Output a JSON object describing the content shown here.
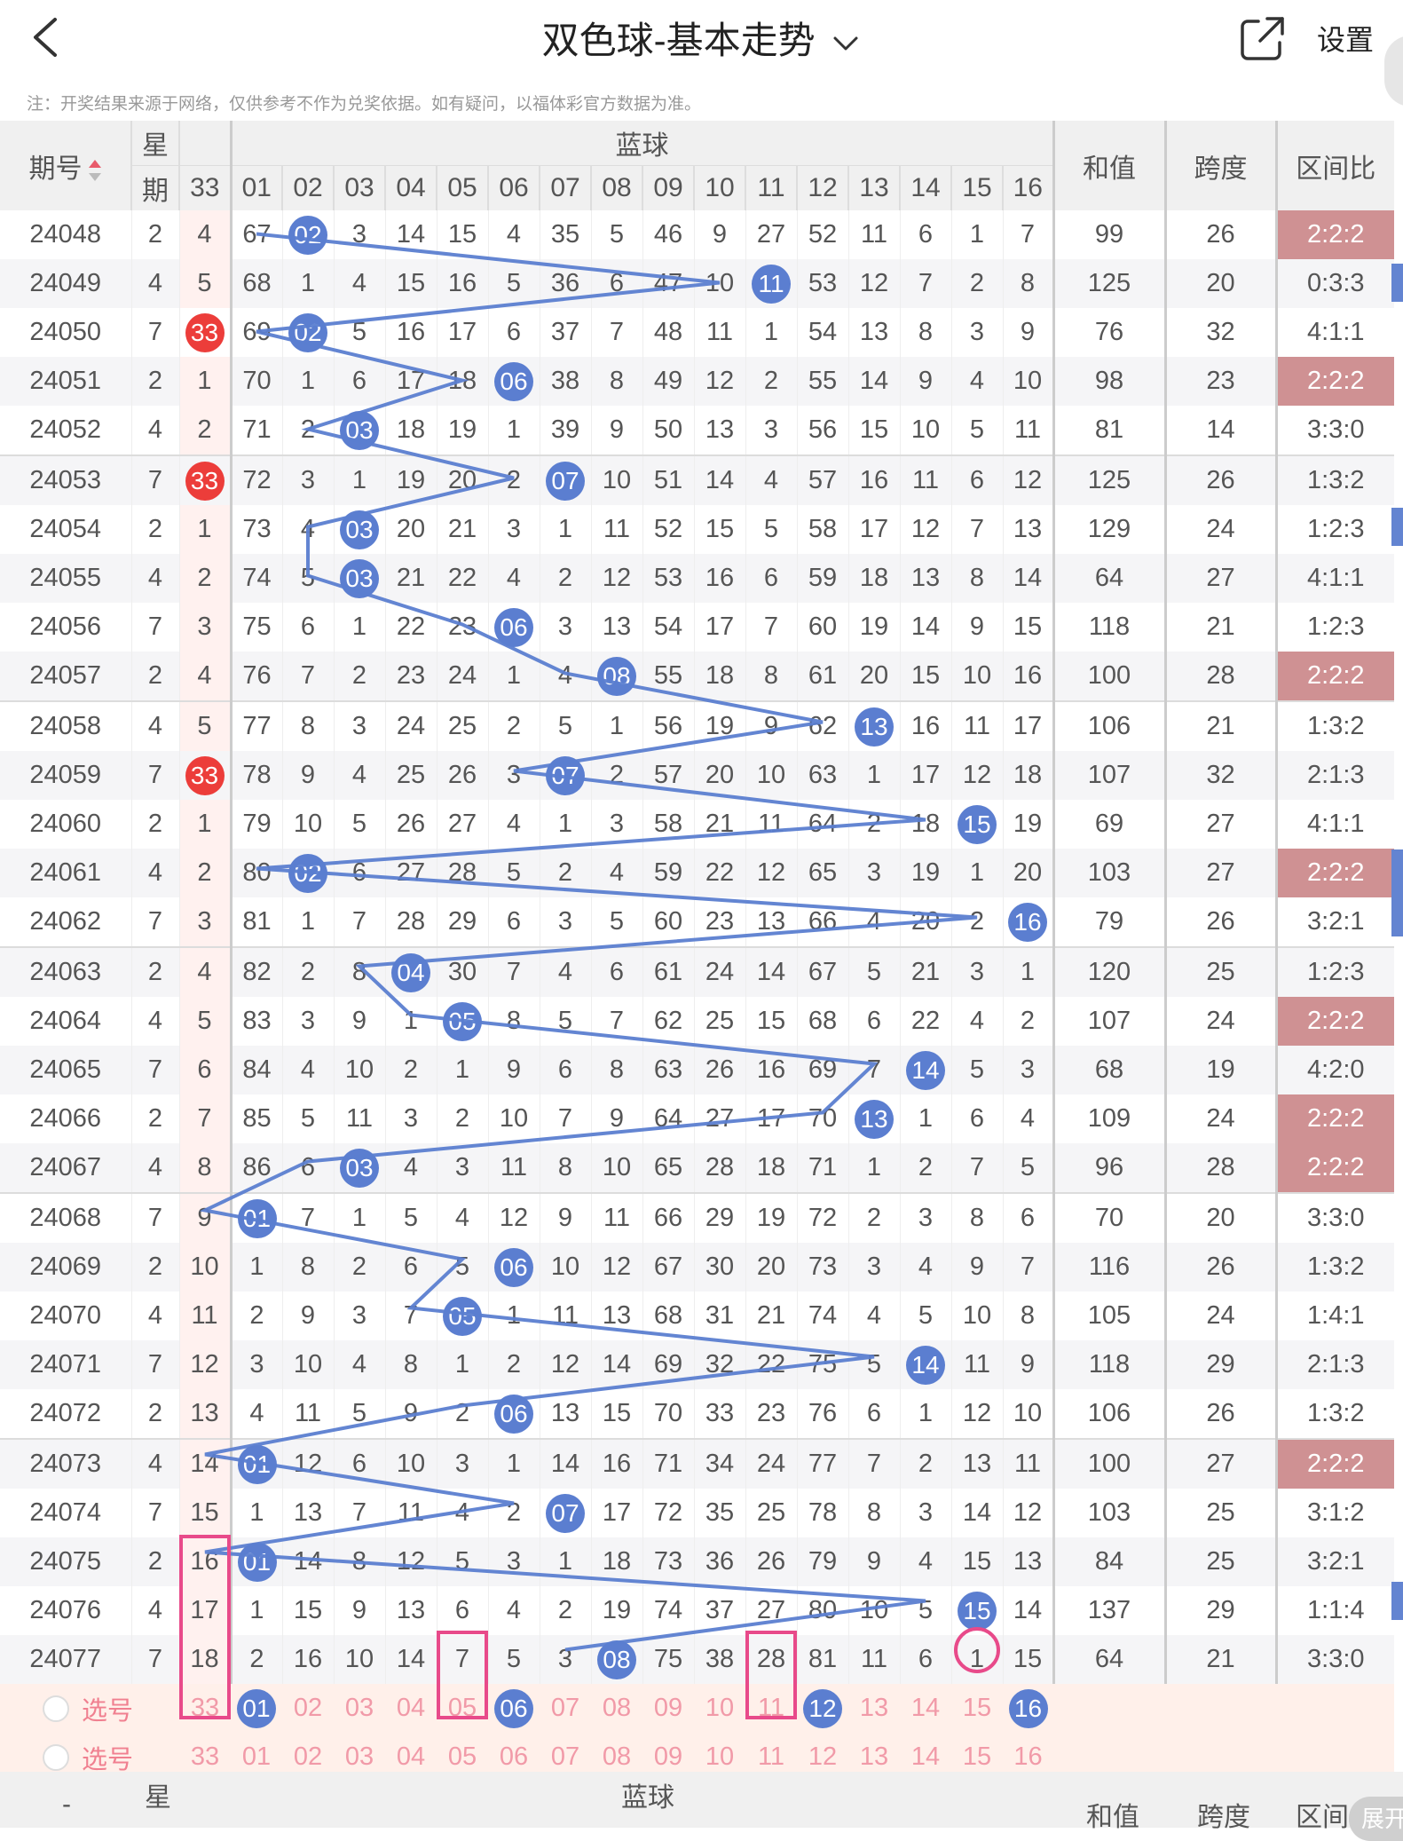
{
  "header": {
    "title": "双色球-基本走势",
    "settings_label": "设置"
  },
  "notice": "注：开奖结果来源于网络，仅供参考不作为兑奖依据。如有疑问，以福体彩官方数据为准。",
  "columns": {
    "issue_label": "期号",
    "week_label_1": "星",
    "week_label_2": "期",
    "blue_label": "蓝球",
    "red33_label": "33",
    "blue_numbers": [
      "01",
      "02",
      "03",
      "04",
      "05",
      "06",
      "07",
      "08",
      "09",
      "10",
      "11",
      "12",
      "13",
      "14",
      "15",
      "16"
    ],
    "sum_label": "和值",
    "span_label": "跨度",
    "ratio_label": "区间比"
  },
  "rows": [
    {
      "issue": "24048",
      "week": "2",
      "red33": "4",
      "red33_hit": false,
      "blue": [
        67,
        "02",
        3,
        14,
        15,
        4,
        35,
        5,
        46,
        9,
        27,
        52,
        11,
        6,
        1,
        7
      ],
      "blue_hit": 2,
      "sum": "99",
      "span": "26",
      "ratio": "2:2:2",
      "ratio_hl": true
    },
    {
      "issue": "24049",
      "week": "4",
      "red33": "5",
      "red33_hit": false,
      "blue": [
        68,
        1,
        4,
        15,
        16,
        5,
        36,
        6,
        47,
        10,
        "11",
        53,
        12,
        7,
        2,
        8
      ],
      "blue_hit": 11,
      "sum": "125",
      "span": "20",
      "ratio": "0:3:3",
      "ratio_hl": false
    },
    {
      "issue": "24050",
      "week": "7",
      "red33": "33",
      "red33_hit": true,
      "blue": [
        69,
        "02",
        5,
        16,
        17,
        6,
        37,
        7,
        48,
        11,
        1,
        54,
        13,
        8,
        3,
        9
      ],
      "blue_hit": 2,
      "sum": "76",
      "span": "32",
      "ratio": "4:1:1",
      "ratio_hl": false
    },
    {
      "issue": "24051",
      "week": "2",
      "red33": "1",
      "red33_hit": false,
      "blue": [
        70,
        1,
        6,
        17,
        18,
        "06",
        38,
        8,
        49,
        12,
        2,
        55,
        14,
        9,
        4,
        10
      ],
      "blue_hit": 6,
      "sum": "98",
      "span": "23",
      "ratio": "2:2:2",
      "ratio_hl": true
    },
    {
      "issue": "24052",
      "week": "4",
      "red33": "2",
      "red33_hit": false,
      "blue": [
        71,
        2,
        "03",
        18,
        19,
        1,
        39,
        9,
        50,
        13,
        3,
        56,
        15,
        10,
        5,
        11
      ],
      "blue_hit": 3,
      "sum": "81",
      "span": "14",
      "ratio": "3:3:0",
      "ratio_hl": false
    },
    {
      "issue": "24053",
      "week": "7",
      "red33": "33",
      "red33_hit": true,
      "blue": [
        72,
        3,
        1,
        19,
        20,
        2,
        "07",
        10,
        51,
        14,
        4,
        57,
        16,
        11,
        6,
        12
      ],
      "blue_hit": 7,
      "sum": "125",
      "span": "26",
      "ratio": "1:3:2",
      "ratio_hl": false
    },
    {
      "issue": "24054",
      "week": "2",
      "red33": "1",
      "red33_hit": false,
      "blue": [
        73,
        4,
        "03",
        20,
        21,
        3,
        1,
        11,
        52,
        15,
        5,
        58,
        17,
        12,
        7,
        13
      ],
      "blue_hit": 3,
      "sum": "129",
      "span": "24",
      "ratio": "1:2:3",
      "ratio_hl": false
    },
    {
      "issue": "24055",
      "week": "4",
      "red33": "2",
      "red33_hit": false,
      "blue": [
        74,
        5,
        "03",
        21,
        22,
        4,
        2,
        12,
        53,
        16,
        6,
        59,
        18,
        13,
        8,
        14
      ],
      "blue_hit": 3,
      "sum": "64",
      "span": "27",
      "ratio": "4:1:1",
      "ratio_hl": false
    },
    {
      "issue": "24056",
      "week": "7",
      "red33": "3",
      "red33_hit": false,
      "blue": [
        75,
        6,
        1,
        22,
        23,
        "06",
        3,
        13,
        54,
        17,
        7,
        60,
        19,
        14,
        9,
        15
      ],
      "blue_hit": 6,
      "sum": "118",
      "span": "21",
      "ratio": "1:2:3",
      "ratio_hl": false
    },
    {
      "issue": "24057",
      "week": "2",
      "red33": "4",
      "red33_hit": false,
      "blue": [
        76,
        7,
        2,
        23,
        24,
        1,
        4,
        "08",
        55,
        18,
        8,
        61,
        20,
        15,
        10,
        16
      ],
      "blue_hit": 8,
      "sum": "100",
      "span": "28",
      "ratio": "2:2:2",
      "ratio_hl": true
    },
    {
      "issue": "24058",
      "week": "4",
      "red33": "5",
      "red33_hit": false,
      "blue": [
        77,
        8,
        3,
        24,
        25,
        2,
        5,
        1,
        56,
        19,
        9,
        62,
        "13",
        16,
        11,
        17
      ],
      "blue_hit": 13,
      "sum": "106",
      "span": "21",
      "ratio": "1:3:2",
      "ratio_hl": false
    },
    {
      "issue": "24059",
      "week": "7",
      "red33": "33",
      "red33_hit": true,
      "blue": [
        78,
        9,
        4,
        25,
        26,
        3,
        "07",
        2,
        57,
        20,
        10,
        63,
        1,
        17,
        12,
        18
      ],
      "blue_hit": 7,
      "sum": "107",
      "span": "32",
      "ratio": "2:1:3",
      "ratio_hl": false
    },
    {
      "issue": "24060",
      "week": "2",
      "red33": "1",
      "red33_hit": false,
      "blue": [
        79,
        10,
        5,
        26,
        27,
        4,
        1,
        3,
        58,
        21,
        11,
        64,
        2,
        18,
        "15",
        19
      ],
      "blue_hit": 15,
      "sum": "69",
      "span": "27",
      "ratio": "4:1:1",
      "ratio_hl": false
    },
    {
      "issue": "24061",
      "week": "4",
      "red33": "2",
      "red33_hit": false,
      "blue": [
        80,
        "02",
        6,
        27,
        28,
        5,
        2,
        4,
        59,
        22,
        12,
        65,
        3,
        19,
        1,
        20
      ],
      "blue_hit": 2,
      "sum": "103",
      "span": "27",
      "ratio": "2:2:2",
      "ratio_hl": true
    },
    {
      "issue": "24062",
      "week": "7",
      "red33": "3",
      "red33_hit": false,
      "blue": [
        81,
        1,
        7,
        28,
        29,
        6,
        3,
        5,
        60,
        23,
        13,
        66,
        4,
        20,
        2,
        "16"
      ],
      "blue_hit": 16,
      "sum": "79",
      "span": "26",
      "ratio": "3:2:1",
      "ratio_hl": false
    },
    {
      "issue": "24063",
      "week": "2",
      "red33": "4",
      "red33_hit": false,
      "blue": [
        82,
        2,
        8,
        "04",
        30,
        7,
        4,
        6,
        61,
        24,
        14,
        67,
        5,
        21,
        3,
        1
      ],
      "blue_hit": 4,
      "sum": "120",
      "span": "25",
      "ratio": "1:2:3",
      "ratio_hl": false
    },
    {
      "issue": "24064",
      "week": "4",
      "red33": "5",
      "red33_hit": false,
      "blue": [
        83,
        3,
        9,
        1,
        "05",
        8,
        5,
        7,
        62,
        25,
        15,
        68,
        6,
        22,
        4,
        2
      ],
      "blue_hit": 5,
      "sum": "107",
      "span": "24",
      "ratio": "2:2:2",
      "ratio_hl": true
    },
    {
      "issue": "24065",
      "week": "7",
      "red33": "6",
      "red33_hit": false,
      "blue": [
        84,
        4,
        10,
        2,
        1,
        9,
        6,
        8,
        63,
        26,
        16,
        69,
        7,
        "14",
        5,
        3
      ],
      "blue_hit": 14,
      "sum": "68",
      "span": "19",
      "ratio": "4:2:0",
      "ratio_hl": false
    },
    {
      "issue": "24066",
      "week": "2",
      "red33": "7",
      "red33_hit": false,
      "blue": [
        85,
        5,
        11,
        3,
        2,
        10,
        7,
        9,
        64,
        27,
        17,
        70,
        "13",
        1,
        6,
        4
      ],
      "blue_hit": 13,
      "sum": "109",
      "span": "24",
      "ratio": "2:2:2",
      "ratio_hl": true
    },
    {
      "issue": "24067",
      "week": "4",
      "red33": "8",
      "red33_hit": false,
      "blue": [
        86,
        6,
        "03",
        4,
        3,
        11,
        8,
        10,
        65,
        28,
        18,
        71,
        1,
        2,
        7,
        5
      ],
      "blue_hit": 3,
      "sum": "96",
      "span": "28",
      "ratio": "2:2:2",
      "ratio_hl": true
    },
    {
      "issue": "24068",
      "week": "7",
      "red33": "9",
      "red33_hit": false,
      "blue": [
        "01",
        7,
        1,
        5,
        4,
        12,
        9,
        11,
        66,
        29,
        19,
        72,
        2,
        3,
        8,
        6
      ],
      "blue_hit": 1,
      "sum": "70",
      "span": "20",
      "ratio": "3:3:0",
      "ratio_hl": false
    },
    {
      "issue": "24069",
      "week": "2",
      "red33": "10",
      "red33_hit": false,
      "blue": [
        1,
        8,
        2,
        6,
        5,
        "06",
        10,
        12,
        67,
        30,
        20,
        73,
        3,
        4,
        9,
        7
      ],
      "blue_hit": 6,
      "sum": "116",
      "span": "26",
      "ratio": "1:3:2",
      "ratio_hl": false
    },
    {
      "issue": "24070",
      "week": "4",
      "red33": "11",
      "red33_hit": false,
      "blue": [
        2,
        9,
        3,
        7,
        "05",
        1,
        11,
        13,
        68,
        31,
        21,
        74,
        4,
        5,
        10,
        8
      ],
      "blue_hit": 5,
      "sum": "105",
      "span": "24",
      "ratio": "1:4:1",
      "ratio_hl": false
    },
    {
      "issue": "24071",
      "week": "7",
      "red33": "12",
      "red33_hit": false,
      "blue": [
        3,
        10,
        4,
        8,
        1,
        2,
        12,
        14,
        69,
        32,
        22,
        75,
        5,
        "14",
        11,
        9
      ],
      "blue_hit": 14,
      "sum": "118",
      "span": "29",
      "ratio": "2:1:3",
      "ratio_hl": false
    },
    {
      "issue": "24072",
      "week": "2",
      "red33": "13",
      "red33_hit": false,
      "blue": [
        4,
        11,
        5,
        9,
        2,
        "06",
        13,
        15,
        70,
        33,
        23,
        76,
        6,
        1,
        12,
        10
      ],
      "blue_hit": 6,
      "sum": "106",
      "span": "26",
      "ratio": "1:3:2",
      "ratio_hl": false
    },
    {
      "issue": "24073",
      "week": "4",
      "red33": "14",
      "red33_hit": false,
      "blue": [
        "01",
        12,
        6,
        10,
        3,
        1,
        14,
        16,
        71,
        34,
        24,
        77,
        7,
        2,
        13,
        11
      ],
      "blue_hit": 1,
      "sum": "100",
      "span": "27",
      "ratio": "2:2:2",
      "ratio_hl": true
    },
    {
      "issue": "24074",
      "week": "7",
      "red33": "15",
      "red33_hit": false,
      "blue": [
        1,
        13,
        7,
        11,
        4,
        2,
        "07",
        17,
        72,
        35,
        25,
        78,
        8,
        3,
        14,
        12
      ],
      "blue_hit": 7,
      "sum": "103",
      "span": "25",
      "ratio": "3:1:2",
      "ratio_hl": false
    },
    {
      "issue": "24075",
      "week": "2",
      "red33": "16",
      "red33_hit": false,
      "blue": [
        "01",
        14,
        8,
        12,
        5,
        3,
        1,
        18,
        73,
        36,
        26,
        79,
        9,
        4,
        15,
        13
      ],
      "blue_hit": 1,
      "sum": "84",
      "span": "25",
      "ratio": "3:2:1",
      "ratio_hl": false
    },
    {
      "issue": "24076",
      "week": "4",
      "red33": "17",
      "red33_hit": false,
      "blue": [
        1,
        15,
        9,
        13,
        6,
        4,
        2,
        19,
        74,
        37,
        27,
        80,
        10,
        5,
        "15",
        14
      ],
      "blue_hit": 15,
      "sum": "137",
      "span": "29",
      "ratio": "1:1:4",
      "ratio_hl": false
    },
    {
      "issue": "24077",
      "week": "7",
      "red33": "18",
      "red33_hit": false,
      "blue": [
        2,
        16,
        10,
        14,
        7,
        5,
        3,
        "08",
        75,
        38,
        28,
        81,
        11,
        6,
        1,
        15
      ],
      "blue_hit": 8,
      "sum": "64",
      "span": "21",
      "ratio": "3:3:0",
      "ratio_hl": false
    }
  ],
  "select_rows": [
    {
      "label": "选号",
      "red33": "33",
      "numbers": [
        "01",
        "02",
        "03",
        "04",
        "05",
        "06",
        "07",
        "08",
        "09",
        "10",
        "11",
        "12",
        "13",
        "14",
        "15",
        "16"
      ],
      "selected": [
        1,
        6,
        12,
        16
      ]
    },
    {
      "label": "选号",
      "red33": "33",
      "numbers": [
        "01",
        "02",
        "03",
        "04",
        "05",
        "06",
        "07",
        "08",
        "09",
        "10",
        "11",
        "12",
        "13",
        "14",
        "15",
        "16"
      ],
      "selected": []
    }
  ],
  "footer_header": {
    "issue_label": "-",
    "week_label": "星",
    "blue_label": "蓝球",
    "sum_label": "和值",
    "span_label": "跨度",
    "ratio_label": "区间"
  },
  "expand_label": "展开",
  "colors": {
    "blue_ball": "#5b7ed0",
    "red_ball": "#ec3d3a",
    "ratio_highlight": "#cf9193",
    "selection_box": "#e84a8a"
  }
}
